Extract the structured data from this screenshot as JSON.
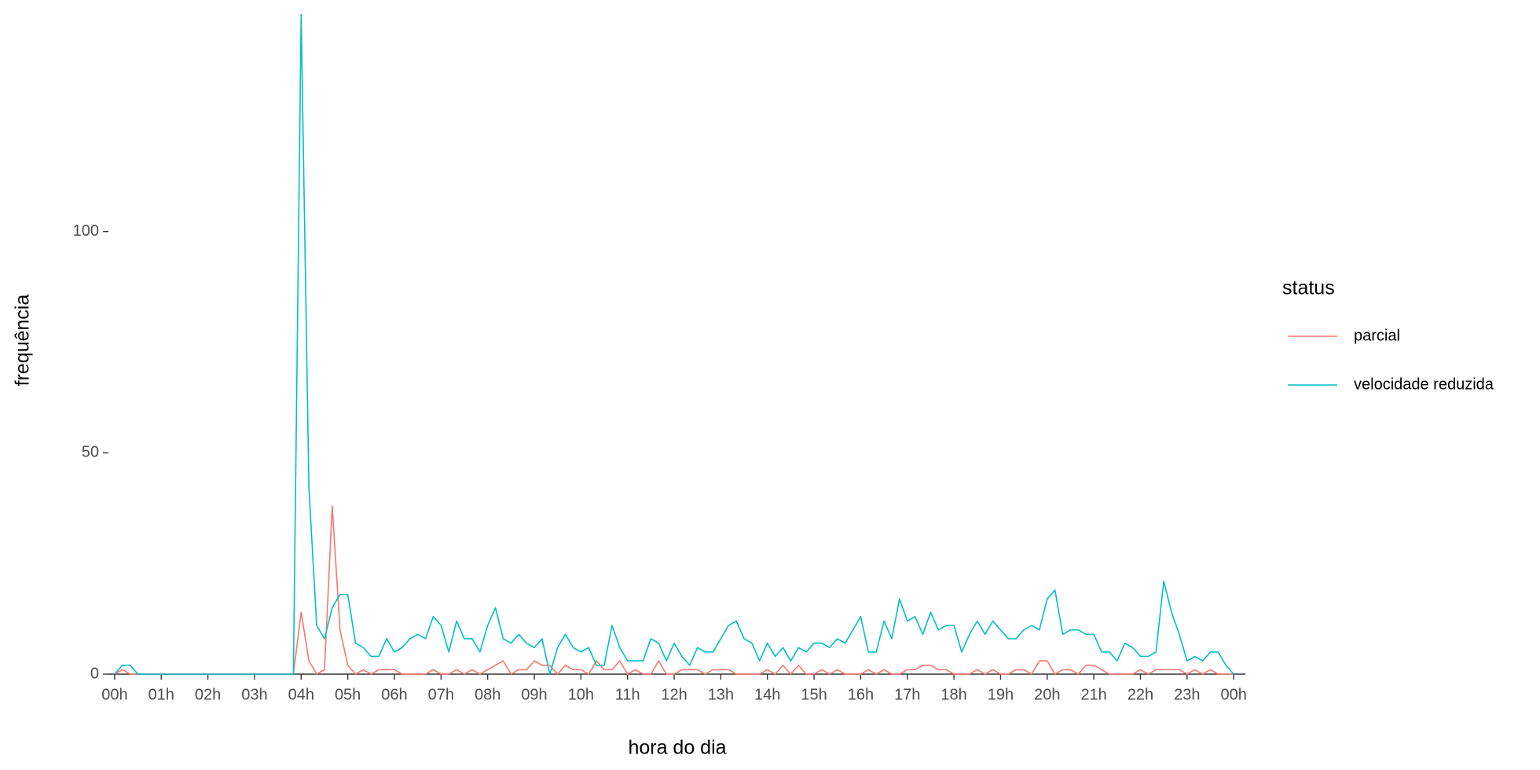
{
  "chart_data": {
    "type": "line",
    "x_label": "hora do dia",
    "y_label": "frequência",
    "legend_title": "status",
    "legend": "right",
    "grid": false,
    "x": [
      0,
      10,
      20,
      30,
      40,
      50,
      60,
      70,
      80,
      90,
      100,
      110,
      120,
      130,
      140,
      150,
      160,
      170,
      180,
      190,
      200,
      210,
      220,
      230,
      240,
      250,
      260,
      270,
      280,
      290,
      300,
      310,
      320,
      330,
      340,
      350,
      360,
      370,
      380,
      390,
      400,
      410,
      420,
      430,
      440,
      450,
      460,
      470,
      480,
      490,
      500,
      510,
      520,
      530,
      540,
      550,
      560,
      570,
      580,
      590,
      600,
      610,
      620,
      630,
      640,
      650,
      660,
      670,
      680,
      690,
      700,
      710,
      720,
      730,
      740,
      750,
      760,
      770,
      780,
      790,
      800,
      810,
      820,
      830,
      840,
      850,
      860,
      870,
      880,
      890,
      900,
      910,
      920,
      930,
      940,
      950,
      960,
      970,
      980,
      990,
      1000,
      1010,
      1020,
      1030,
      1040,
      1050,
      1060,
      1070,
      1080,
      1090,
      1100,
      1110,
      1120,
      1130,
      1140,
      1150,
      1160,
      1170,
      1180,
      1190,
      1200,
      1210,
      1220,
      1230,
      1240,
      1250,
      1260,
      1270,
      1280,
      1290,
      1300,
      1310,
      1320,
      1330,
      1340,
      1350,
      1360,
      1370,
      1380,
      1390,
      1400,
      1410,
      1420,
      1430,
      1440
    ],
    "series": [
      {
        "name": "parcial",
        "color": "#f8766d",
        "values": [
          0,
          1,
          0,
          0,
          0,
          0,
          0,
          0,
          0,
          0,
          0,
          0,
          0,
          0,
          0,
          0,
          0,
          0,
          0,
          0,
          0,
          0,
          0,
          0,
          14,
          3,
          0,
          1,
          38,
          10,
          2,
          0,
          1,
          0,
          1,
          1,
          1,
          0,
          0,
          0,
          0,
          1,
          0,
          0,
          1,
          0,
          1,
          0,
          1,
          2,
          3,
          0,
          1,
          1,
          3,
          2,
          2,
          0,
          2,
          1,
          1,
          0,
          3,
          1,
          1,
          3,
          0,
          1,
          0,
          0,
          3,
          0,
          0,
          1,
          1,
          1,
          0,
          1,
          1,
          1,
          0,
          0,
          0,
          0,
          1,
          0,
          2,
          0,
          2,
          0,
          0,
          1,
          0,
          1,
          0,
          0,
          0,
          1,
          0,
          1,
          0,
          0,
          1,
          1,
          2,
          2,
          1,
          1,
          0,
          0,
          0,
          1,
          0,
          1,
          0,
          0,
          1,
          1,
          0,
          3,
          3,
          0,
          1,
          1,
          0,
          2,
          2,
          1,
          0,
          0,
          0,
          0,
          1,
          0,
          1,
          1,
          1,
          1,
          0,
          1,
          0,
          1,
          0,
          0,
          0
        ]
      },
      {
        "name": "velocidade reduzida",
        "color": "#00bfc4",
        "values": [
          0,
          2,
          2,
          0,
          0,
          0,
          0,
          0,
          0,
          0,
          0,
          0,
          0,
          0,
          0,
          0,
          0,
          0,
          0,
          0,
          0,
          0,
          0,
          0,
          149,
          42,
          11,
          8,
          15,
          18,
          18,
          7,
          6,
          4,
          4,
          8,
          5,
          6,
          8,
          9,
          8,
          13,
          11,
          5,
          12,
          8,
          8,
          5,
          11,
          15,
          8,
          7,
          9,
          7,
          6,
          8,
          0,
          6,
          9,
          6,
          5,
          6,
          2,
          2,
          11,
          6,
          3,
          3,
          3,
          8,
          7,
          3,
          7,
          4,
          2,
          6,
          5,
          5,
          8,
          11,
          12,
          8,
          7,
          3,
          7,
          4,
          6,
          3,
          6,
          5,
          7,
          7,
          6,
          8,
          7,
          10,
          13,
          5,
          5,
          12,
          8,
          17,
          12,
          13,
          9,
          14,
          10,
          11,
          11,
          5,
          9,
          12,
          9,
          12,
          10,
          8,
          8,
          10,
          11,
          10,
          17,
          19,
          9,
          10,
          10,
          9,
          9,
          5,
          5,
          3,
          7,
          6,
          4,
          4,
          5,
          21,
          14,
          9,
          3,
          4,
          3,
          5,
          5,
          2,
          0
        ]
      }
    ],
    "xlim": [
      -8,
      1455
    ],
    "xticks": [
      {
        "value": 0,
        "label": "00h"
      },
      {
        "value": 60,
        "label": "01h"
      },
      {
        "value": 120,
        "label": "02h"
      },
      {
        "value": 180,
        "label": "03h"
      },
      {
        "value": 240,
        "label": "04h"
      },
      {
        "value": 300,
        "label": "05h"
      },
      {
        "value": 360,
        "label": "06h"
      },
      {
        "value": 420,
        "label": "07h"
      },
      {
        "value": 480,
        "label": "08h"
      },
      {
        "value": 540,
        "label": "09h"
      },
      {
        "value": 600,
        "label": "10h"
      },
      {
        "value": 660,
        "label": "11h"
      },
      {
        "value": 720,
        "label": "12h"
      },
      {
        "value": 780,
        "label": "13h"
      },
      {
        "value": 840,
        "label": "14h"
      },
      {
        "value": 900,
        "label": "15h"
      },
      {
        "value": 960,
        "label": "16h"
      },
      {
        "value": 1020,
        "label": "17h"
      },
      {
        "value": 1080,
        "label": "18h"
      },
      {
        "value": 1140,
        "label": "19h"
      },
      {
        "value": 1200,
        "label": "20h"
      },
      {
        "value": 1260,
        "label": "21h"
      },
      {
        "value": 1320,
        "label": "22h"
      },
      {
        "value": 1380,
        "label": "23h"
      },
      {
        "value": 1440,
        "label": "00h"
      }
    ],
    "ylim": [
      0,
      150
    ],
    "yticks": [
      0,
      50,
      100
    ]
  }
}
